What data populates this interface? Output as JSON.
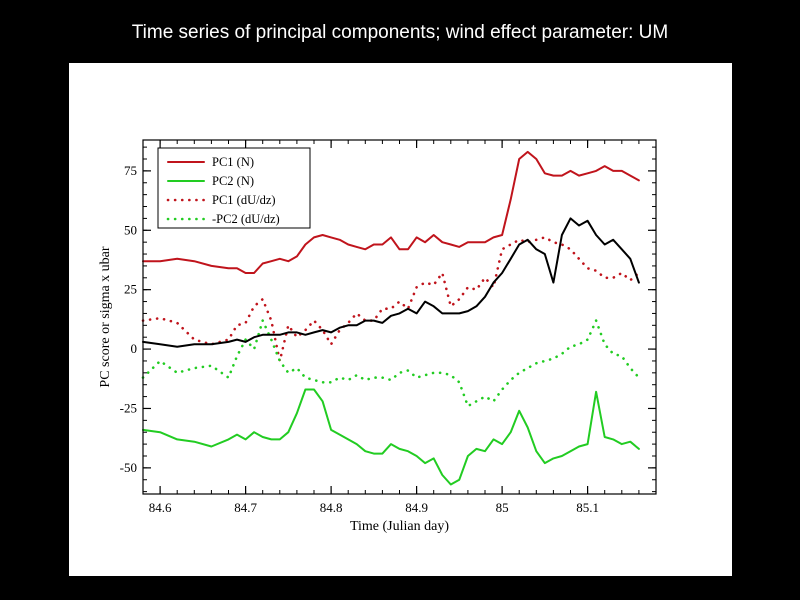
{
  "slide": {
    "title": "Time series of principal components; wind effect parameter: UM"
  },
  "chart_data": {
    "type": "line",
    "title": "",
    "xlabel": "Time (Julian day)",
    "ylabel": "PC score or sigma x ubar",
    "xlim": [
      84.58,
      85.18
    ],
    "ylim": [
      -61,
      88
    ],
    "xticks": [
      84.6,
      84.7,
      84.8,
      84.9,
      85,
      85.1
    ],
    "xtick_labels": [
      "84.6",
      "84.7",
      "84.8",
      "84.9",
      "85",
      "85.1"
    ],
    "yticks": [
      -50,
      -25,
      0,
      25,
      50,
      75
    ],
    "ytick_labels": [
      "-50",
      "-25",
      "0",
      "25",
      "50",
      "75"
    ],
    "grid": false,
    "legend_position": "top-left",
    "series": [
      {
        "name": "PC1 (N)",
        "color": "#c0141c",
        "style": "solid",
        "x": [
          84.58,
          84.6,
          84.62,
          84.64,
          84.66,
          84.68,
          84.69,
          84.7,
          84.71,
          84.72,
          84.73,
          84.74,
          84.75,
          84.76,
          84.77,
          84.78,
          84.79,
          84.8,
          84.81,
          84.82,
          84.83,
          84.84,
          84.85,
          84.86,
          84.87,
          84.88,
          84.89,
          84.9,
          84.91,
          84.92,
          84.93,
          84.94,
          84.95,
          84.96,
          84.97,
          84.98,
          84.99,
          85.0,
          85.01,
          85.02,
          85.03,
          85.04,
          85.05,
          85.06,
          85.07,
          85.08,
          85.09,
          85.1,
          85.11,
          85.12,
          85.13,
          85.14,
          85.15,
          85.16
        ],
        "y": [
          37,
          37,
          38,
          37,
          35,
          34,
          34,
          32,
          32,
          36,
          37,
          38,
          37,
          39,
          44,
          47,
          48,
          47,
          46,
          44,
          43,
          42,
          44,
          44,
          47,
          42,
          42,
          47,
          45,
          48,
          45,
          44,
          43,
          45,
          45,
          45,
          47,
          48,
          63,
          80,
          83,
          80,
          74,
          73,
          73,
          75,
          73,
          74,
          75,
          77,
          75,
          75,
          73,
          71
        ]
      },
      {
        "name": "PC2 (N)",
        "color": "#22cc22",
        "style": "solid",
        "x": [
          84.58,
          84.6,
          84.62,
          84.64,
          84.66,
          84.68,
          84.69,
          84.7,
          84.71,
          84.72,
          84.73,
          84.74,
          84.75,
          84.76,
          84.77,
          84.78,
          84.79,
          84.8,
          84.81,
          84.82,
          84.83,
          84.84,
          84.85,
          84.86,
          84.87,
          84.88,
          84.89,
          84.9,
          84.91,
          84.92,
          84.93,
          84.94,
          84.95,
          84.96,
          84.97,
          84.98,
          84.99,
          85.0,
          85.01,
          85.02,
          85.03,
          85.04,
          85.05,
          85.06,
          85.07,
          85.08,
          85.09,
          85.1,
          85.11,
          85.12,
          85.13,
          85.14,
          85.15,
          85.16
        ],
        "y": [
          -34,
          -35,
          -38,
          -39,
          -41,
          -38,
          -36,
          -38,
          -35,
          -37,
          -38,
          -38,
          -35,
          -27,
          -17,
          -17,
          -22,
          -34,
          -36,
          -38,
          -40,
          -43,
          -44,
          -44,
          -40,
          -42,
          -43,
          -45,
          -48,
          -46,
          -53,
          -57,
          -55,
          -45,
          -42,
          -43,
          -38,
          -40,
          -35,
          -26,
          -33,
          -43,
          -48,
          -46,
          -45,
          -43,
          -41,
          -40,
          -18,
          -37,
          -38,
          -40,
          -39,
          -42
        ]
      },
      {
        "name": "PC1 (dU/dz)",
        "color": "#c0141c",
        "style": "dotted",
        "x": [
          84.58,
          84.6,
          84.62,
          84.64,
          84.66,
          84.68,
          84.69,
          84.7,
          84.71,
          84.72,
          84.73,
          84.74,
          84.75,
          84.76,
          84.77,
          84.78,
          84.79,
          84.8,
          84.81,
          84.82,
          84.83,
          84.84,
          84.85,
          84.86,
          84.87,
          84.88,
          84.89,
          84.9,
          84.91,
          84.92,
          84.93,
          84.94,
          84.95,
          84.96,
          84.97,
          84.98,
          84.99,
          85.0,
          85.01,
          85.02,
          85.03,
          85.04,
          85.05,
          85.06,
          85.07,
          85.08,
          85.09,
          85.1,
          85.11,
          85.12,
          85.13,
          85.14,
          85.15,
          85.16
        ],
        "y": [
          12,
          13,
          11,
          4,
          2,
          4,
          10,
          11,
          18,
          21,
          12,
          -5,
          10,
          5,
          8,
          12,
          8,
          2,
          8,
          11,
          15,
          12,
          12,
          17,
          17,
          20,
          17,
          26,
          28,
          27,
          32,
          18,
          21,
          26,
          25,
          30,
          26,
          42,
          44,
          46,
          45,
          46,
          47,
          45,
          44,
          42,
          38,
          34,
          33,
          30,
          30,
          32,
          29,
          32
        ]
      },
      {
        "name": "-PC2 (dU/dz)",
        "color": "#22cc22",
        "style": "dotted",
        "x": [
          84.58,
          84.6,
          84.62,
          84.64,
          84.66,
          84.68,
          84.69,
          84.7,
          84.71,
          84.72,
          84.73,
          84.74,
          84.75,
          84.76,
          84.77,
          84.78,
          84.79,
          84.8,
          84.81,
          84.82,
          84.83,
          84.84,
          84.85,
          84.86,
          84.87,
          84.88,
          84.89,
          84.9,
          84.91,
          84.92,
          84.93,
          84.94,
          84.95,
          84.96,
          84.97,
          84.98,
          84.99,
          85.0,
          85.01,
          85.02,
          85.03,
          85.04,
          85.05,
          85.06,
          85.07,
          85.08,
          85.09,
          85.1,
          85.11,
          85.12,
          85.13,
          85.14,
          85.15,
          85.16
        ],
        "y": [
          -12,
          -5,
          -10,
          -8,
          -7,
          -12,
          -3,
          4,
          0,
          12,
          4,
          -5,
          -10,
          -8,
          -12,
          -13,
          -14,
          -14,
          -12,
          -13,
          -11,
          -13,
          -12,
          -12,
          -13,
          -10,
          -9,
          -12,
          -11,
          -10,
          -10,
          -11,
          -14,
          -24,
          -22,
          -20,
          -22,
          -17,
          -13,
          -10,
          -8,
          -6,
          -5,
          -4,
          -2,
          1,
          2,
          4,
          12,
          2,
          -2,
          -3,
          -8,
          -12
        ]
      },
      {
        "name": "",
        "color": "#000000",
        "style": "solid",
        "x": [
          84.58,
          84.6,
          84.62,
          84.64,
          84.66,
          84.68,
          84.69,
          84.7,
          84.71,
          84.72,
          84.73,
          84.74,
          84.75,
          84.76,
          84.77,
          84.78,
          84.79,
          84.8,
          84.81,
          84.82,
          84.83,
          84.84,
          84.85,
          84.86,
          84.87,
          84.88,
          84.89,
          84.9,
          84.91,
          84.92,
          84.93,
          84.94,
          84.95,
          84.96,
          84.97,
          84.98,
          84.99,
          85.0,
          85.01,
          85.02,
          85.03,
          85.04,
          85.05,
          85.06,
          85.07,
          85.08,
          85.09,
          85.1,
          85.11,
          85.12,
          85.13,
          85.14,
          85.15,
          85.16
        ],
        "y": [
          3,
          2,
          1,
          2,
          2,
          3,
          4,
          3,
          5,
          6,
          6,
          6,
          7,
          7,
          6,
          7,
          8,
          7,
          9,
          10,
          10,
          12,
          12,
          11,
          14,
          15,
          17,
          15,
          20,
          18,
          15,
          15,
          15,
          16,
          18,
          22,
          28,
          32,
          38,
          44,
          46,
          42,
          40,
          28,
          48,
          55,
          52,
          54,
          48,
          44,
          46,
          42,
          38,
          28
        ]
      }
    ]
  }
}
